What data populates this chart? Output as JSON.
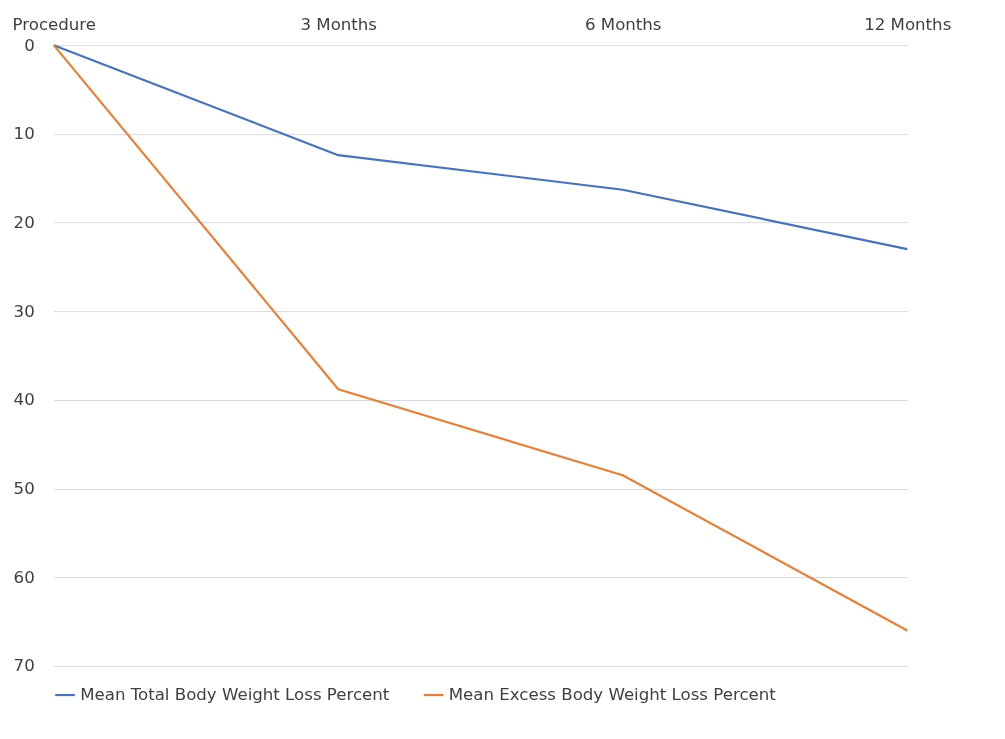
{
  "chart_data": {
    "type": "line",
    "categories": [
      "Procedure",
      "3 Months",
      "6 Months",
      "12 Months"
    ],
    "series": [
      {
        "name": "Mean Total Body Weight Loss Percent",
        "color": "#4472c4",
        "values": [
          0,
          12.4,
          16.3,
          23.0
        ]
      },
      {
        "name": "Mean Excess Body Weight Loss Percent",
        "color": "#ed7d31",
        "values": [
          0,
          38.8,
          48.5,
          66.0
        ]
      }
    ],
    "ylim": [
      70,
      0
    ],
    "yticks": [
      0,
      10,
      20,
      30,
      40,
      50,
      60,
      70
    ],
    "grid": "y",
    "legend": "bottom",
    "marker": "none",
    "line_style": "solid"
  }
}
